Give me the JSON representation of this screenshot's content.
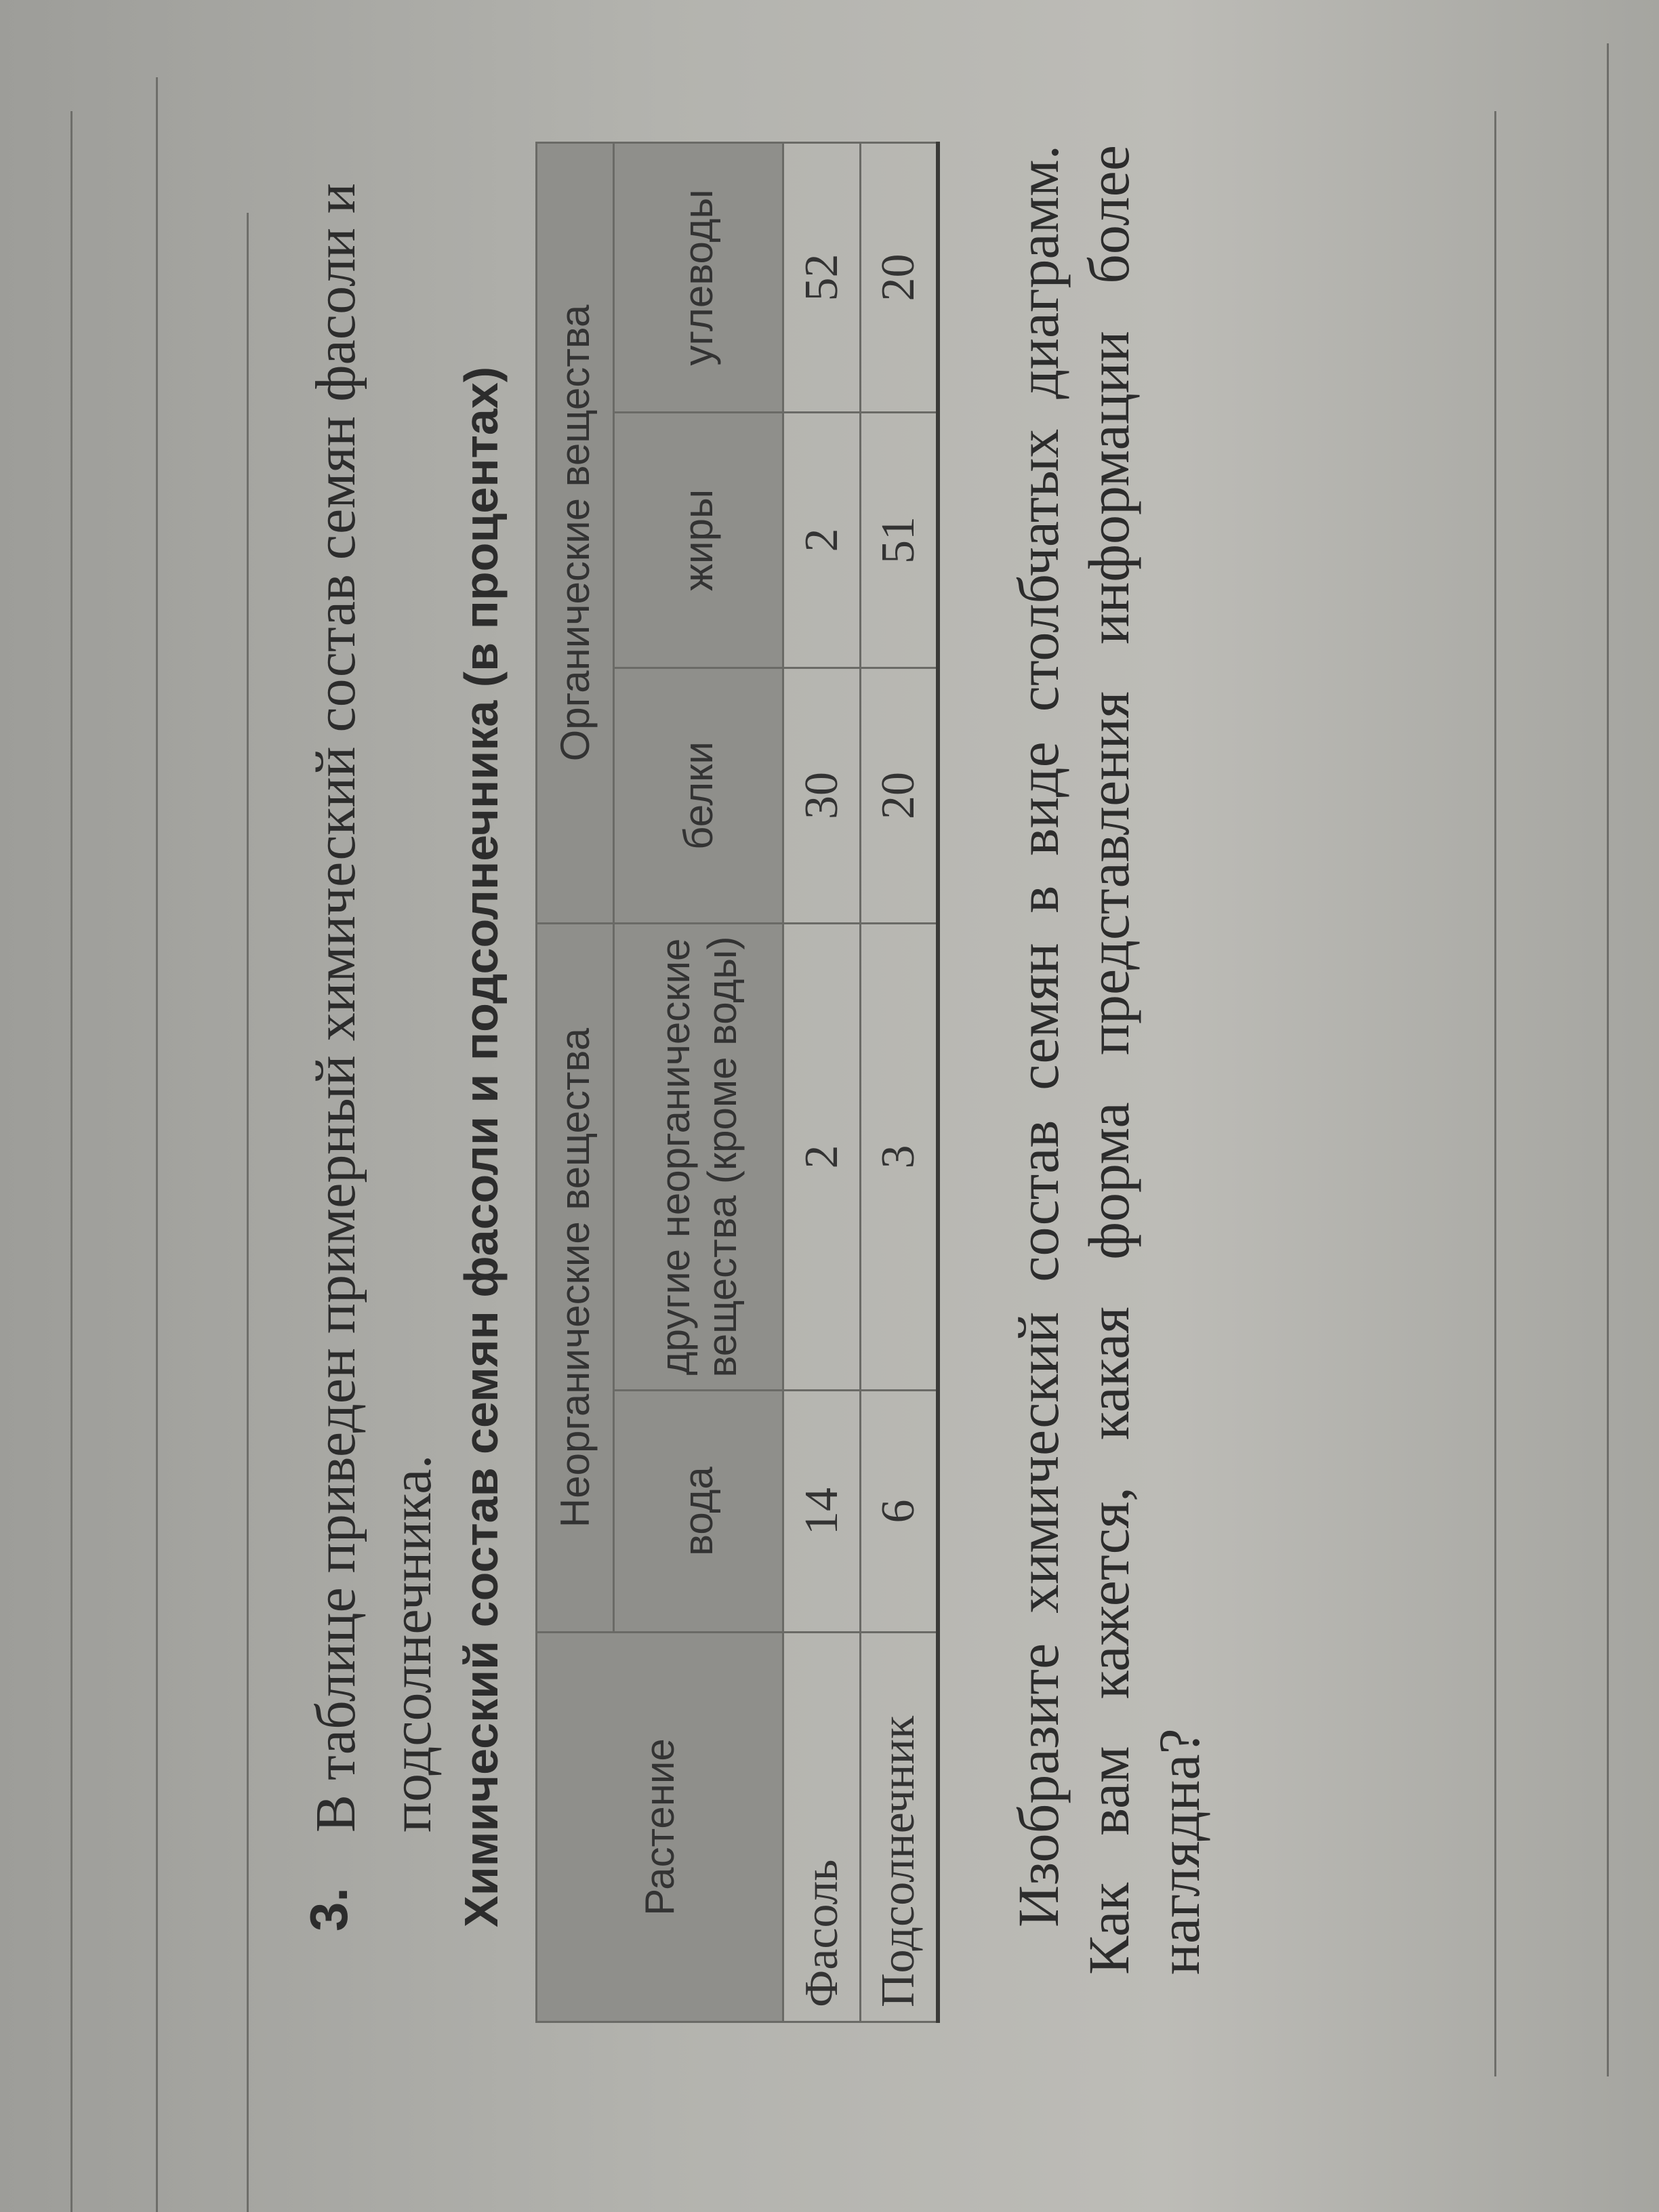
{
  "task_number": "3.",
  "intro": "В таблице приведен примерный химический состав семян фасоли и подсолнечника.",
  "table": {
    "title": "Химический состав семян фасоли и подсолнечника (в процентах)",
    "header": {
      "plant": "Растение",
      "inorganic": "Неорганические вещества",
      "organic": "Органические вещества",
      "water": "вода",
      "other_inorganic": "другие неорганические вещества (кроме воды)",
      "proteins": "белки",
      "fats": "жиры",
      "carbs": "углеводы"
    },
    "rows": [
      {
        "plant": "Фасоль",
        "water": "14",
        "other": "2",
        "proteins": "30",
        "fats": "2",
        "carbs": "52"
      },
      {
        "plant": "Подсолнечник",
        "water": "6",
        "other": "3",
        "proteins": "20",
        "fats": "51",
        "carbs": "20"
      }
    ]
  },
  "question": "Изобразите химический состав семян в виде столбчатых диаграмм. Как вам кажется, какая форма представления информации более наглядна?"
}
